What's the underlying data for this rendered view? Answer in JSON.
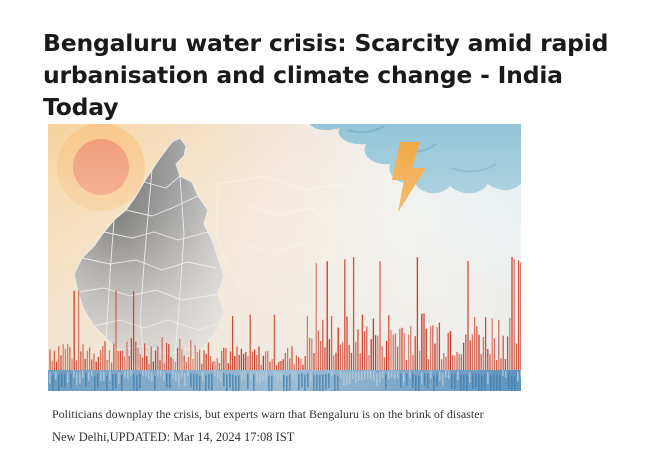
{
  "article": {
    "headline": "Bengaluru water crisis: Scarcity amid rapid urbanisation and climate change - India Today",
    "summary": "Politicians downplay the crisis, but experts warn that Bengaluru is on the brink of disaster",
    "dateline": "New Delhi,UPDATED: Mar 14, 2024 17:08 IST"
  },
  "hero_image": {
    "icons": [
      "sun-icon",
      "cloud-icon",
      "lightning-icon",
      "karnataka-map"
    ],
    "colors": {
      "sky_warm": "#f6d9a8",
      "sky_cool": "#e8f0f3",
      "sun_outer": "#f7b978",
      "sun_inner": "#ef8f6a",
      "cloud": "#8fc3d6",
      "lightning": "#f2a23a",
      "map_dark": "#555555",
      "map_light": "#dcdcdc",
      "heat_bars": "#c8321e",
      "water_strip": "#4a86b5"
    }
  }
}
